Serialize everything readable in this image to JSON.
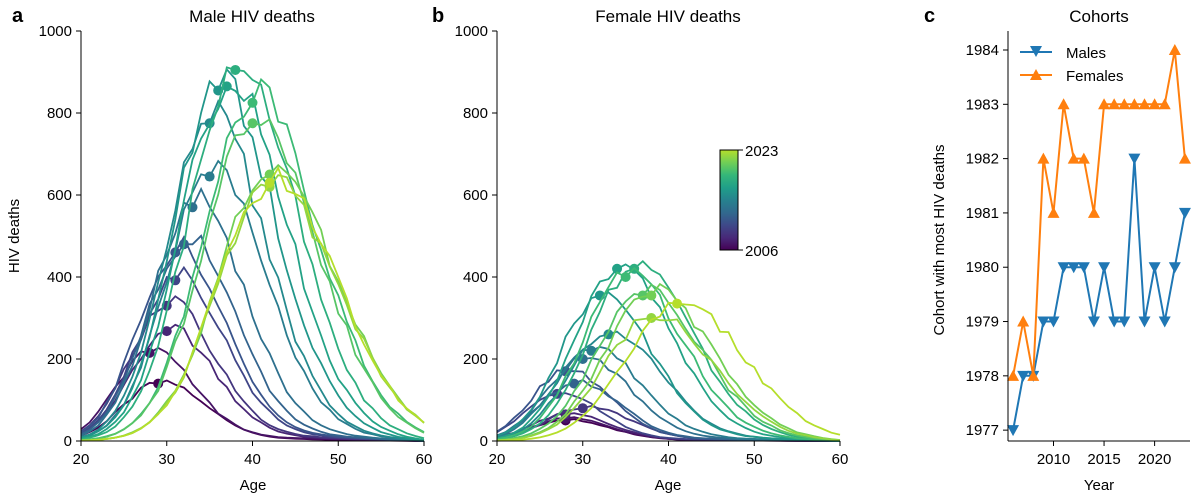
{
  "panels": {
    "a": {
      "letter": "a",
      "title": "Male HIV deaths",
      "xlabel": "Age",
      "ylabel": "HIV deaths"
    },
    "b": {
      "letter": "b",
      "title": "Female HIV deaths",
      "xlabel": "Age",
      "ylabel": ""
    },
    "c": {
      "letter": "c",
      "title": "Cohorts",
      "xlabel": "Year",
      "ylabel": "Cohort with most HIV deaths"
    }
  },
  "colorbar": {
    "min_label": "2006",
    "max_label": "2023",
    "colormap": "viridis"
  },
  "colors": {
    "males": "#1f77b4",
    "females": "#ff7f0e"
  },
  "chart_data": [
    {
      "panel": "a",
      "type": "line",
      "title": "Male HIV deaths",
      "xlabel": "Age",
      "ylabel": "HIV deaths",
      "xlim": [
        20,
        60
      ],
      "ylim": [
        0,
        1000
      ],
      "xticks": [
        20,
        30,
        40,
        50,
        60
      ],
      "yticks": [
        0,
        200,
        400,
        600,
        800,
        1000
      ],
      "years": [
        2006,
        2007,
        2008,
        2009,
        2010,
        2011,
        2012,
        2013,
        2014,
        2015,
        2016,
        2017,
        2018,
        2019,
        2020,
        2021,
        2022,
        2023
      ],
      "peaks": [
        {
          "year": 2006,
          "age": 29,
          "deaths": 140
        },
        {
          "year": 2007,
          "age": 28,
          "deaths": 215
        },
        {
          "year": 2008,
          "age": 30,
          "deaths": 268
        },
        {
          "year": 2009,
          "age": 30,
          "deaths": 330
        },
        {
          "year": 2010,
          "age": 31,
          "deaths": 392
        },
        {
          "year": 2011,
          "age": 31,
          "deaths": 460
        },
        {
          "year": 2012,
          "age": 32,
          "deaths": 480
        },
        {
          "year": 2013,
          "age": 33,
          "deaths": 570
        },
        {
          "year": 2014,
          "age": 35,
          "deaths": 645
        },
        {
          "year": 2015,
          "age": 35,
          "deaths": 775
        },
        {
          "year": 2016,
          "age": 36,
          "deaths": 855
        },
        {
          "year": 2017,
          "age": 37,
          "deaths": 865
        },
        {
          "year": 2018,
          "age": 38,
          "deaths": 905
        },
        {
          "year": 2019,
          "age": 40,
          "deaths": 825
        },
        {
          "year": 2020,
          "age": 40,
          "deaths": 775
        },
        {
          "year": 2021,
          "age": 42,
          "deaths": 650
        },
        {
          "year": 2022,
          "age": 42,
          "deaths": 620
        },
        {
          "year": 2023,
          "age": 42,
          "deaths": 630
        }
      ]
    },
    {
      "panel": "b",
      "type": "line",
      "title": "Female HIV deaths",
      "xlabel": "Age",
      "ylabel": "",
      "xlim": [
        20,
        60
      ],
      "ylim": [
        0,
        1000
      ],
      "xticks": [
        20,
        30,
        40,
        50,
        60
      ],
      "yticks": [
        0,
        200,
        400,
        600,
        800,
        1000
      ],
      "years": [
        2006,
        2007,
        2008,
        2009,
        2010,
        2011,
        2012,
        2013,
        2014,
        2015,
        2016,
        2017,
        2018,
        2019,
        2020,
        2021,
        2022,
        2023
      ],
      "peaks": [
        {
          "year": 2006,
          "age": 28,
          "deaths": 50
        },
        {
          "year": 2007,
          "age": 28,
          "deaths": 55
        },
        {
          "year": 2008,
          "age": 28,
          "deaths": 65
        },
        {
          "year": 2009,
          "age": 30,
          "deaths": 80
        },
        {
          "year": 2010,
          "age": 27,
          "deaths": 115
        },
        {
          "year": 2011,
          "age": 28,
          "deaths": 170
        },
        {
          "year": 2012,
          "age": 29,
          "deaths": 140
        },
        {
          "year": 2013,
          "age": 30,
          "deaths": 200
        },
        {
          "year": 2014,
          "age": 31,
          "deaths": 220
        },
        {
          "year": 2015,
          "age": 33,
          "deaths": 260
        },
        {
          "year": 2016,
          "age": 32,
          "deaths": 355
        },
        {
          "year": 2017,
          "age": 34,
          "deaths": 420
        },
        {
          "year": 2018,
          "age": 36,
          "deaths": 420
        },
        {
          "year": 2019,
          "age": 35,
          "deaths": 400
        },
        {
          "year": 2020,
          "age": 37,
          "deaths": 355
        },
        {
          "year": 2021,
          "age": 38,
          "deaths": 355
        },
        {
          "year": 2022,
          "age": 38,
          "deaths": 300
        },
        {
          "year": 2023,
          "age": 41,
          "deaths": 335
        }
      ]
    },
    {
      "panel": "c",
      "type": "line",
      "title": "Cohorts",
      "xlabel": "Year",
      "ylabel": "Cohort with most HIV deaths",
      "xlim": [
        2005.5,
        2023.5
      ],
      "ylim": [
        1976.8,
        1984.35
      ],
      "xticks": [
        2010,
        2015,
        2020
      ],
      "yticks": [
        1977,
        1978,
        1979,
        1980,
        1981,
        1982,
        1983,
        1984
      ],
      "legend": "upper-left",
      "x": [
        2006,
        2007,
        2008,
        2009,
        2010,
        2011,
        2012,
        2013,
        2014,
        2015,
        2016,
        2017,
        2018,
        2019,
        2020,
        2021,
        2022,
        2023
      ],
      "series": [
        {
          "name": "Males",
          "marker": "triangle-down",
          "color": "#1f77b4",
          "values": [
            1977,
            1978,
            1978,
            1979,
            1979,
            1980,
            1980,
            1980,
            1979,
            1980,
            1979,
            1979,
            1982,
            1979,
            1980,
            1979,
            1980,
            1981
          ]
        },
        {
          "name": "Females",
          "marker": "triangle-up",
          "color": "#ff7f0e",
          "values": [
            1978,
            1979,
            1978,
            1982,
            1981,
            1983,
            1982,
            1982,
            1981,
            1983,
            1983,
            1983,
            1983,
            1983,
            1983,
            1983,
            1984,
            1982
          ]
        }
      ]
    }
  ]
}
